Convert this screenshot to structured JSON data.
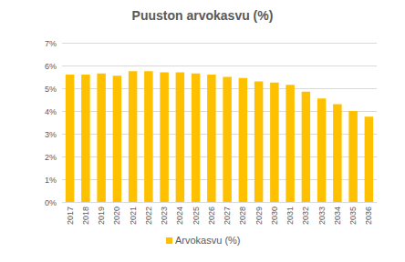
{
  "chart_data": {
    "type": "bar",
    "title": "Puuston arvokasvu (%)",
    "categories": [
      "2017",
      "2018",
      "2019",
      "2020",
      "2021",
      "2022",
      "2023",
      "2024",
      "2025",
      "2026",
      "2027",
      "2028",
      "2029",
      "2030",
      "2031",
      "2032",
      "2033",
      "2034",
      "2035",
      "2036"
    ],
    "series": [
      {
        "name": "Arvokasvu (%)",
        "color": "#ffc000",
        "values": [
          5.6,
          5.6,
          5.65,
          5.55,
          5.75,
          5.75,
          5.7,
          5.7,
          5.65,
          5.6,
          5.5,
          5.45,
          5.3,
          5.25,
          5.15,
          4.85,
          4.55,
          4.3,
          4.0,
          3.75
        ]
      }
    ],
    "ylim": [
      0,
      7
    ],
    "yticks": [
      {
        "value": 0,
        "label": "0%"
      },
      {
        "value": 1,
        "label": "1%"
      },
      {
        "value": 2,
        "label": "2%"
      },
      {
        "value": 3,
        "label": "3%"
      },
      {
        "value": 4,
        "label": "4%"
      },
      {
        "value": 5,
        "label": "5%"
      },
      {
        "value": 6,
        "label": "6%"
      },
      {
        "value": 7,
        "label": "7%"
      }
    ],
    "grid": true,
    "legend": "bottom"
  }
}
